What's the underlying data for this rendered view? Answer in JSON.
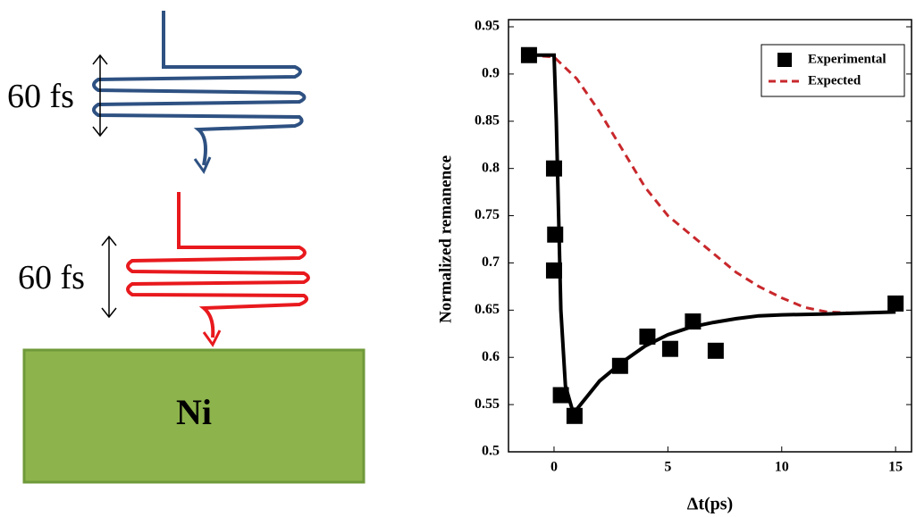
{
  "diagram": {
    "pulse_1_label": "60 fs",
    "pulse_2_label": "60 fs",
    "sample_label": "Ni"
  },
  "chart_data": {
    "type": "scatter",
    "x_label": "Δt(ps)",
    "y_label": "Normalized remanence",
    "xlim": [
      -2,
      15.7
    ],
    "ylim": [
      0.5,
      0.95
    ],
    "xticks": [
      0,
      5,
      10,
      15
    ],
    "yticks": [
      0.5,
      0.55,
      0.6,
      0.65,
      0.7,
      0.75,
      0.8,
      0.85,
      0.9,
      0.95
    ],
    "legend": "upper right",
    "series": [
      {
        "name": "Experimental",
        "color": "#000000",
        "mode": "markers",
        "x": [
          -1.1,
          0,
          0.05,
          0,
          0.3,
          0.9,
          2.9,
          4.1,
          5.1,
          6.1,
          7.1,
          15
        ],
        "values": [
          0.92,
          0.8,
          0.73,
          0.692,
          0.56,
          0.538,
          0.591,
          0.622,
          0.609,
          0.638,
          0.607,
          0.657
        ]
      },
      {
        "name": "Expected",
        "color": "#c8282c",
        "mode": "line",
        "dashed": true,
        "x": [
          -1.1,
          0,
          1,
          2,
          3,
          4,
          5,
          6,
          7,
          8,
          9,
          10,
          11,
          12,
          13,
          15
        ],
        "values": [
          0.92,
          0.918,
          0.895,
          0.86,
          0.82,
          0.78,
          0.75,
          0.73,
          0.71,
          0.69,
          0.675,
          0.663,
          0.653,
          0.648,
          0.647,
          0.648
        ]
      },
      {
        "color": "#000000",
        "mode": "line",
        "dashed": false,
        "x": [
          -1.1,
          0,
          0.1,
          0.2,
          0.3,
          0.5,
          0.8,
          1,
          1.5,
          2,
          3,
          4,
          5,
          6,
          7,
          8,
          9,
          10,
          12,
          15
        ],
        "values": [
          0.92,
          0.92,
          0.85,
          0.75,
          0.65,
          0.57,
          0.545,
          0.545,
          0.56,
          0.575,
          0.595,
          0.612,
          0.624,
          0.632,
          0.637,
          0.641,
          0.644,
          0.645,
          0.646,
          0.648
        ]
      }
    ]
  }
}
